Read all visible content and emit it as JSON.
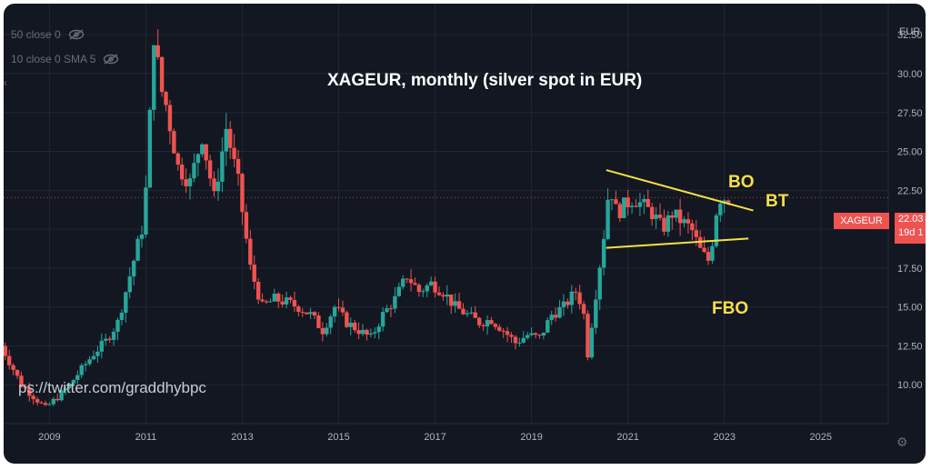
{
  "chart_data": {
    "type": "candlestick",
    "title": "XAGEUR, monthly (silver spot in EUR)",
    "symbol": "XAGEUR",
    "currency": "EUR",
    "x_ticks": [
      "2009",
      "2011",
      "2013",
      "2015",
      "2017",
      "2019",
      "2021",
      "2023",
      "2025"
    ],
    "y_ticks": [
      "10.00",
      "12.50",
      "15.00",
      "17.50",
      "20.00",
      "22.50",
      "25.00",
      "27.50",
      "30.00",
      "32.50"
    ],
    "y_range": [
      7.5,
      34.5
    ],
    "x_range": [
      2008.05,
      2026.4
    ],
    "last_price_label": "22.03",
    "countdown_label": "19d 1",
    "price_series": [
      [
        2008.0,
        13.0
      ],
      [
        2008.5,
        10.0
      ],
      [
        2009.0,
        8.5
      ],
      [
        2009.25,
        9.2
      ],
      [
        2009.5,
        10.0
      ],
      [
        2009.75,
        11.0
      ],
      [
        2010.0,
        12.0
      ],
      [
        2010.25,
        12.8
      ],
      [
        2010.5,
        14.0
      ],
      [
        2010.75,
        17.0
      ],
      [
        2011.0,
        20.0
      ],
      [
        2011.1,
        23.0
      ],
      [
        2011.25,
        32.5
      ],
      [
        2011.4,
        29.0
      ],
      [
        2011.5,
        28.0
      ],
      [
        2011.75,
        24.0
      ],
      [
        2012.0,
        23.0
      ],
      [
        2012.25,
        26.0
      ],
      [
        2012.5,
        22.0
      ],
      [
        2012.75,
        26.5
      ],
      [
        2013.0,
        23.0
      ],
      [
        2013.25,
        17.5
      ],
      [
        2013.5,
        15.0
      ],
      [
        2013.75,
        15.5
      ],
      [
        2014.0,
        15.3
      ],
      [
        2014.25,
        15.0
      ],
      [
        2014.5,
        14.5
      ],
      [
        2014.75,
        13.5
      ],
      [
        2015.0,
        15.0
      ],
      [
        2015.25,
        14.0
      ],
      [
        2015.5,
        13.5
      ],
      [
        2015.75,
        13.0
      ],
      [
        2016.0,
        14.5
      ],
      [
        2016.25,
        15.5
      ],
      [
        2016.5,
        17.0
      ],
      [
        2016.75,
        16.0
      ],
      [
        2017.0,
        16.5
      ],
      [
        2017.25,
        16.0
      ],
      [
        2017.5,
        15.0
      ],
      [
        2017.75,
        14.5
      ],
      [
        2018.0,
        14.0
      ],
      [
        2018.25,
        14.2
      ],
      [
        2018.5,
        13.5
      ],
      [
        2018.75,
        12.7
      ],
      [
        2019.0,
        13.2
      ],
      [
        2019.25,
        13.0
      ],
      [
        2019.5,
        14.5
      ],
      [
        2019.75,
        15.0
      ],
      [
        2020.0,
        16.0
      ],
      [
        2020.15,
        15.0
      ],
      [
        2020.25,
        12.0
      ],
      [
        2020.4,
        15.5
      ],
      [
        2020.6,
        20.0
      ],
      [
        2020.7,
        23.0
      ],
      [
        2020.85,
        21.0
      ],
      [
        2021.0,
        21.5
      ],
      [
        2021.2,
        22.0
      ],
      [
        2021.4,
        21.5
      ],
      [
        2021.6,
        21.0
      ],
      [
        2021.8,
        20.0
      ],
      [
        2022.0,
        21.0
      ],
      [
        2022.2,
        20.5
      ],
      [
        2022.4,
        20.0
      ],
      [
        2022.6,
        18.5
      ],
      [
        2022.75,
        18.0
      ],
      [
        2022.85,
        19.5
      ],
      [
        2022.95,
        22.0
      ],
      [
        2023.1,
        22.03
      ]
    ],
    "trendlines": [
      {
        "from": [
          2020.55,
          23.8
        ],
        "to": [
          2023.6,
          21.2
        ]
      },
      {
        "from": [
          2020.55,
          18.8
        ],
        "to": [
          2023.5,
          19.4
        ]
      }
    ],
    "annotations": [
      "BO",
      "BT",
      "FBO"
    ],
    "colors": {
      "up": "#26a69a",
      "down": "#ef5350",
      "line": "#f5e047",
      "background": "#131722",
      "grid": "#232733",
      "axis_text": "#b2b5be"
    }
  },
  "indicators": [
    {
      "label": "50 close 0",
      "icon": "eye-off-icon"
    },
    {
      "label": "10 close 0 SMA 5",
      "icon": "eye-off-icon"
    }
  ],
  "watermark": "ps://twitter.com/graddhybpc"
}
